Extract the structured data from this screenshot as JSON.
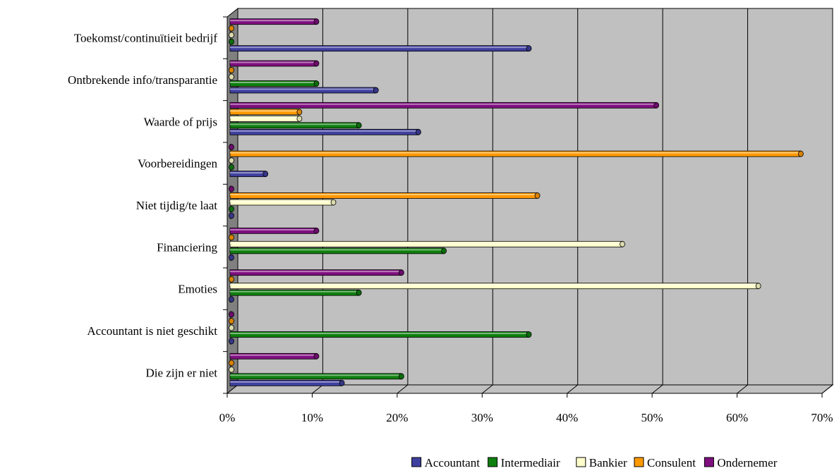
{
  "chart_data": {
    "type": "bar",
    "orientation": "horizontal",
    "style": "3d-cylinder",
    "categories": [
      "Die zijn er niet",
      "Accountant is niet geschikt",
      "Emoties",
      "Financiering",
      "Niet tijdig/te laat",
      "Voorbereidingen",
      "Waarde of prijs",
      "Ontbrekende info/transparantie",
      "Toekomst/continuïtieit bedrijf"
    ],
    "series": [
      {
        "name": "Accountant",
        "color": "#3f3f9f",
        "values": [
          13.5,
          0,
          0,
          0,
          0,
          4.5,
          22.5,
          17.5,
          35.5
        ]
      },
      {
        "name": "Intermediair",
        "color": "#0f7f0f",
        "values": [
          20.5,
          35.5,
          15.5,
          25.5,
          0,
          0,
          15.5,
          10.5,
          0
        ]
      },
      {
        "name": "Bankier",
        "color": "#ffffcc",
        "values": [
          0,
          0,
          62.5,
          46.5,
          12.5,
          0,
          8.5,
          0,
          0
        ]
      },
      {
        "name": "Consulent",
        "color": "#ff9900",
        "values": [
          0,
          0,
          0,
          0,
          36.5,
          67.5,
          8.5,
          0,
          0
        ]
      },
      {
        "name": "Ondernemer",
        "color": "#7f0f7f",
        "values": [
          10.5,
          0,
          20.5,
          10.5,
          0,
          0,
          50.5,
          10.5,
          10.5
        ]
      }
    ],
    "xlim": [
      0,
      70
    ],
    "xticks": [
      "0%",
      "10%",
      "20%",
      "30%",
      "40%",
      "50%",
      "60%",
      "70%"
    ],
    "grid": true,
    "plot_background": "#c0c0c0",
    "legend_position": "bottom"
  }
}
